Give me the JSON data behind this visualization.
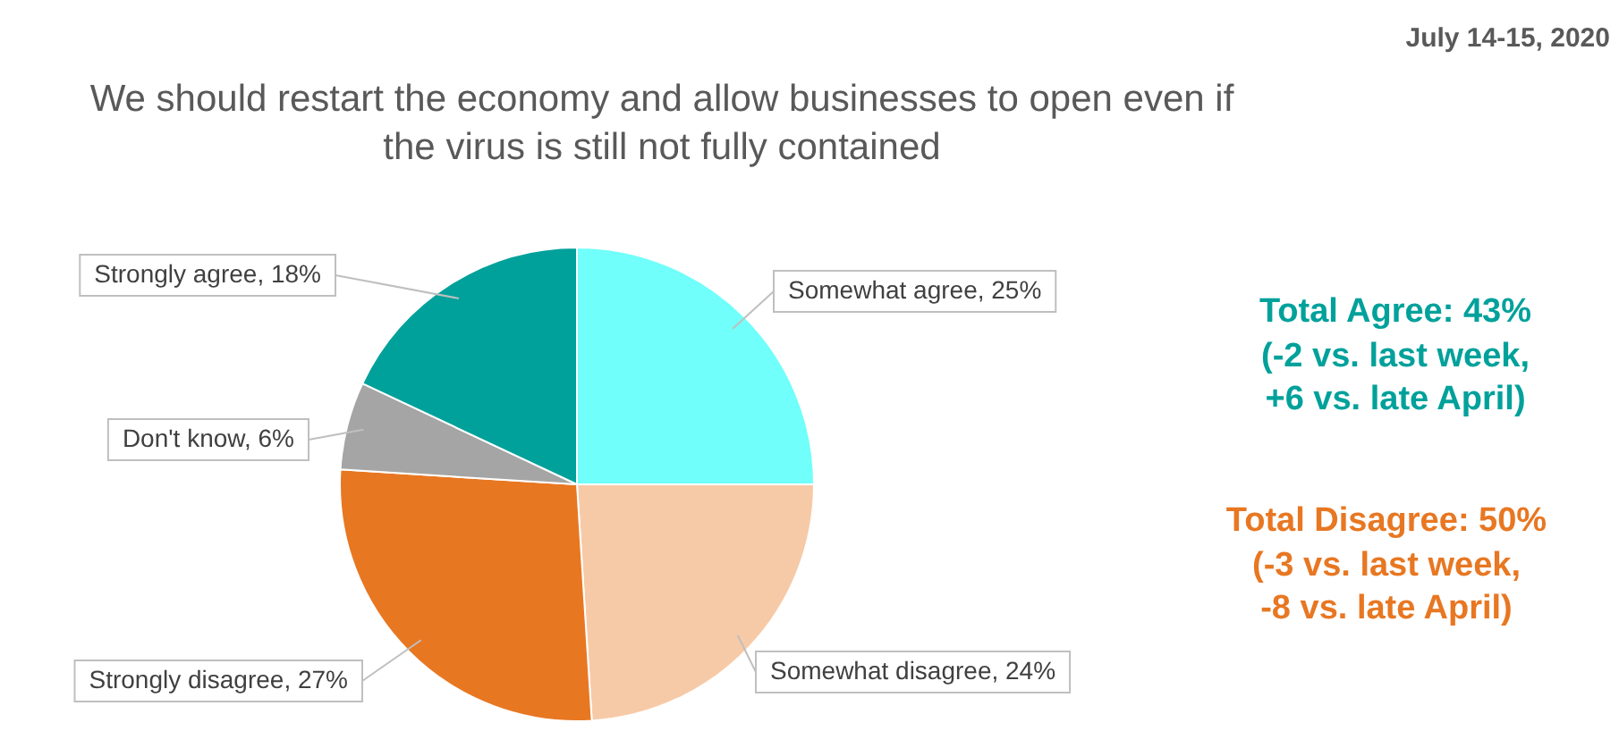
{
  "chart_data": {
    "type": "pie",
    "title": "We should restart the economy and allow businesses to open even if the virus is still not fully contained",
    "categories": [
      "Somewhat agree",
      "Somewhat disagree",
      "Strongly disagree",
      "Don't know",
      "Strongly agree"
    ],
    "values": [
      25,
      24,
      27,
      6,
      18
    ],
    "colors": [
      "#70fffa",
      "#f7caa7",
      "#e87722",
      "#a5a5a5",
      "#00a19b"
    ],
    "value_labels": [
      "25%",
      "24%",
      "27%",
      "6%",
      "18%"
    ],
    "annotations": [
      "July 14-15, 2020",
      "Total Agree: 43%\n(-2 vs. last week,\n+6 vs. late April)",
      "Total Disagree: 50%\n(-3 vs. last week,\n-8 vs. late April)"
    ],
    "legend": false
  }
}
